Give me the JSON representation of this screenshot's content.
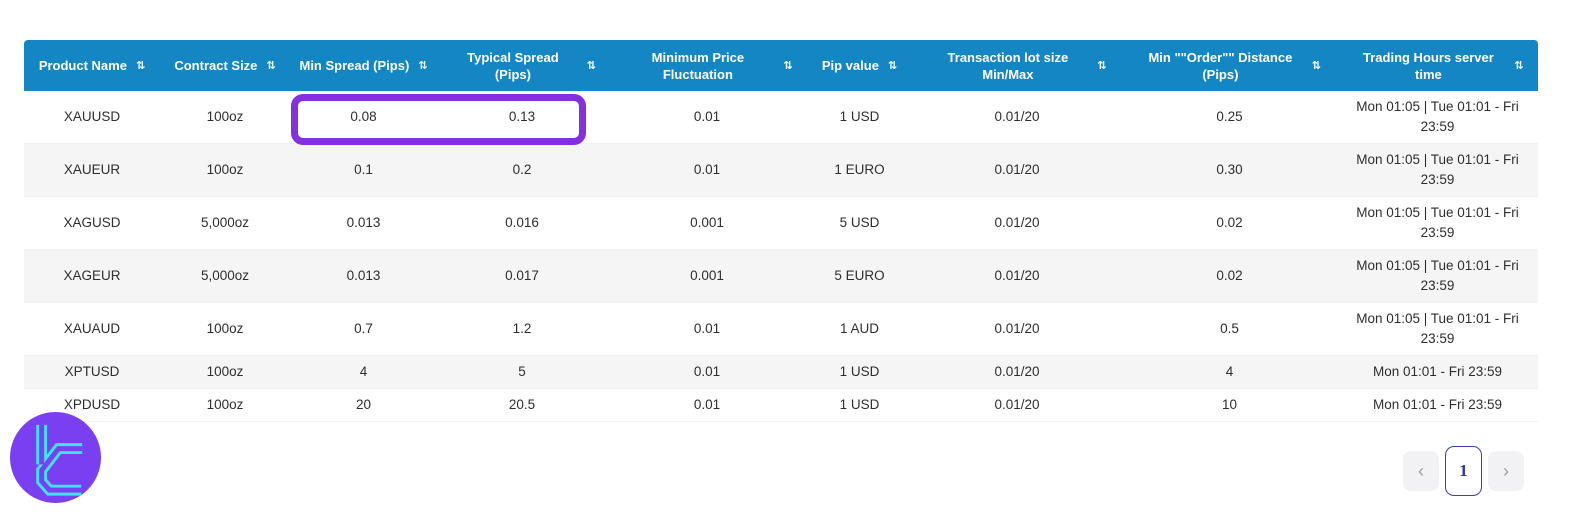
{
  "table": {
    "columns": [
      {
        "label": "Product Name"
      },
      {
        "label": "Contract Size"
      },
      {
        "label": "Min Spread (Pips)"
      },
      {
        "label": "Typical Spread (Pips)"
      },
      {
        "label": "Minimum Price Fluctuation"
      },
      {
        "label": "Pip value"
      },
      {
        "label": "Transaction lot size Min/Max"
      },
      {
        "label": "Min \"\"Order\"\" Distance (Pips)"
      },
      {
        "label": "Trading Hours server time"
      }
    ],
    "sort_icon_glyph": "⇅",
    "rows": [
      [
        "XAUUSD",
        "100oz",
        "0.08",
        "0.13",
        "0.01",
        "1 USD",
        "0.01/20",
        "0.25",
        "Mon 01:05 | Tue 01:01 - Fri 23:59"
      ],
      [
        "XAUEUR",
        "100oz",
        "0.1",
        "0.2",
        "0.01",
        "1 EURO",
        "0.01/20",
        "0.30",
        "Mon 01:05 | Tue 01:01 - Fri 23:59"
      ],
      [
        "XAGUSD",
        "5,000oz",
        "0.013",
        "0.016",
        "0.001",
        "5 USD",
        "0.01/20",
        "0.02",
        "Mon 01:05 | Tue 01:01 - Fri 23:59"
      ],
      [
        "XAGEUR",
        "5,000oz",
        "0.013",
        "0.017",
        "0.001",
        "5 EURO",
        "0.01/20",
        "0.02",
        "Mon 01:05 | Tue 01:01 - Fri 23:59"
      ],
      [
        "XAUAUD",
        "100oz",
        "0.7",
        "1.2",
        "0.01",
        "1 AUD",
        "0.01/20",
        "0.5",
        "Mon 01:05 | Tue 01:01 - Fri 23:59"
      ],
      [
        "XPTUSD",
        "100oz",
        "4",
        "5",
        "0.01",
        "1 USD",
        "0.01/20",
        "4",
        "Mon 01:01 - Fri 23:59"
      ],
      [
        "XPDUSD",
        "100oz",
        "20",
        "20.5",
        "0.01",
        "1 USD",
        "0.01/20",
        "10",
        "Mon 01:01 - Fri 23:59"
      ]
    ]
  },
  "highlight": {
    "row_product": "XAUUSD",
    "highlighted_values": [
      "0.08",
      "0.13"
    ],
    "color": "#8430df"
  },
  "pagination": {
    "prev_glyph": "‹",
    "current_page": "1",
    "next_glyph": "›"
  },
  "colors": {
    "header_bg": "#1486c4",
    "header_text": "#ffffff",
    "row_alt_bg": "#f5f5f5",
    "highlight_purple": "#8430df",
    "logo_circle": "#7b3ff2",
    "logo_glyph": "#3ee3f6",
    "pagination_accent": "#3d3fae"
  }
}
